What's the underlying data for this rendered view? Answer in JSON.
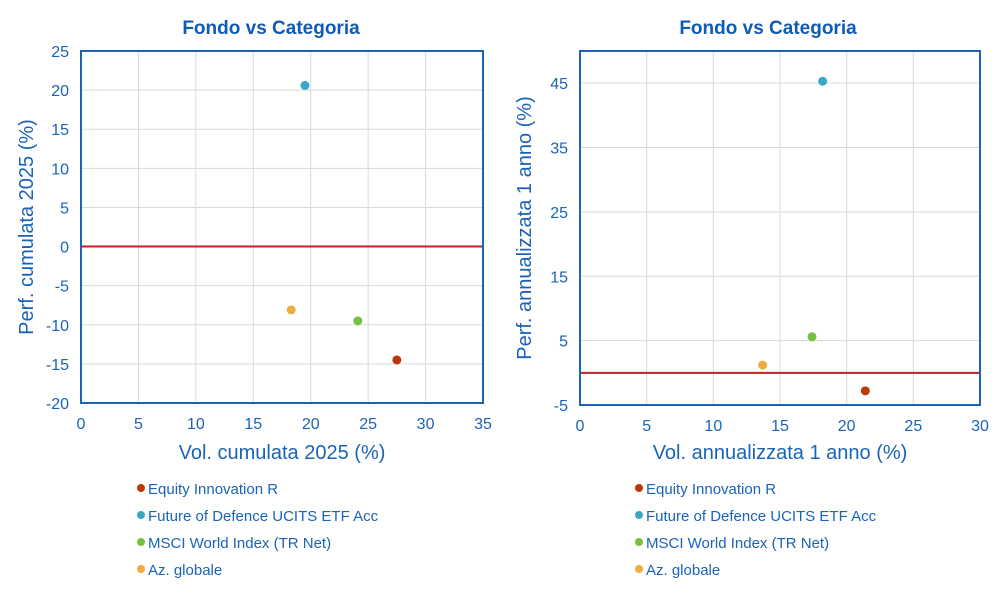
{
  "chart_data": [
    {
      "type": "scatter",
      "title": "Fondo vs Categoria",
      "xlabel": "Vol. cumulata 2025 (%)",
      "ylabel": "Perf. cumulata 2025 (%)",
      "xlim": [
        0,
        35
      ],
      "ylim": [
        -20,
        25
      ],
      "xticks": [
        0,
        5,
        10,
        15,
        20,
        25,
        30,
        35
      ],
      "yticks": [
        25,
        20,
        15,
        10,
        5,
        0,
        -5,
        -10,
        -15,
        -20
      ],
      "reference_line_y": 0,
      "series": [
        {
          "name": "Equity Innovation R",
          "color": "#c0360c",
          "x": 27.5,
          "y": -14.5
        },
        {
          "name": "Future of Defence UCITS ETF Acc",
          "color": "#3aa7c4",
          "x": 19.5,
          "y": 20.6
        },
        {
          "name": "MSCI World Index (TR Net)",
          "color": "#77c043",
          "x": 24.1,
          "y": -9.5
        },
        {
          "name": "Az. globale",
          "color": "#efac40",
          "x": 18.3,
          "y": -8.1
        }
      ]
    },
    {
      "type": "scatter",
      "title": "Fondo vs Categoria",
      "xlabel": "Vol. annualizzata 1 anno (%)",
      "ylabel": "Perf. annualizzata 1 anno (%)",
      "xlim": [
        0,
        30
      ],
      "ylim": [
        -5,
        50
      ],
      "xticks": [
        0,
        5,
        10,
        15,
        20,
        25,
        30
      ],
      "yticks": [
        45,
        35,
        25,
        15,
        5,
        -5
      ],
      "reference_line_y": 0,
      "series": [
        {
          "name": "Equity Innovation R",
          "color": "#c0360c",
          "x": 21.4,
          "y": -2.8
        },
        {
          "name": "Future of Defence UCITS ETF Acc",
          "color": "#3aa7c4",
          "x": 18.2,
          "y": 45.3
        },
        {
          "name": "MSCI World Index (TR Net)",
          "color": "#77c043",
          "x": 17.4,
          "y": 5.6
        },
        {
          "name": "Az. globale",
          "color": "#efac40",
          "x": 13.7,
          "y": 1.2
        }
      ]
    }
  ],
  "colors": {
    "text": "#1a63b8",
    "title": "#0f5bb5",
    "frame": "#1a63b8",
    "grid": "#d9d9d9",
    "zero_line": "#c0221e"
  }
}
